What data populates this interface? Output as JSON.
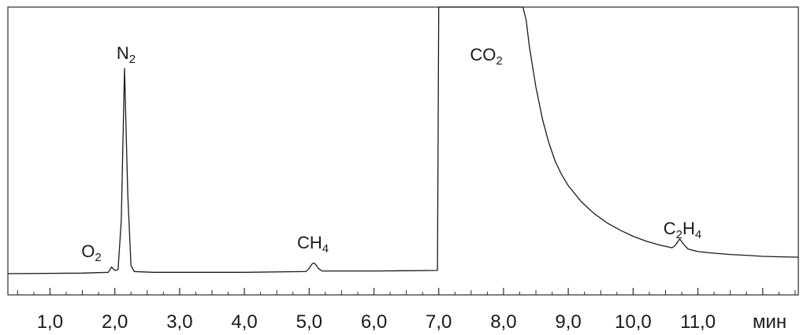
{
  "chart_data": {
    "type": "line",
    "title": "",
    "xlabel": "мин",
    "ylabel": "",
    "xlim": [
      0.35,
      12.55
    ],
    "ylim": [
      0,
      100
    ],
    "grid": false,
    "legend": "none",
    "x_ticks": [
      "1,0",
      "2,0",
      "3,0",
      "4,0",
      "5,0",
      "6,0",
      "7,0",
      "8,0",
      "9,0",
      "10,0",
      "11,0"
    ],
    "x_tick_values": [
      1,
      2,
      3,
      4,
      5,
      6,
      7,
      8,
      9,
      10,
      11
    ],
    "peaks": [
      {
        "id": "o2",
        "main": "O",
        "sub": "2",
        "x": 1.95,
        "height": 2.5
      },
      {
        "id": "n2",
        "main": "N",
        "sub": "2",
        "x": 2.15,
        "height": 77
      },
      {
        "id": "ch4",
        "main": "CH",
        "sub": "4",
        "x": 5.07,
        "height": 4
      },
      {
        "id": "co2",
        "main": "CO",
        "sub": "2",
        "x": 7.0,
        "height": 100
      },
      {
        "id": "c2h4",
        "main": "C",
        "sub": "2",
        "main2": "H",
        "sub2": "4",
        "x": 10.72,
        "height": 4
      }
    ],
    "series": [
      {
        "x": [
          0.35,
          1.5,
          1.9,
          1.95,
          2.0,
          2.05,
          2.1,
          2.15,
          2.2,
          2.25,
          2.3,
          2.6,
          4.0,
          4.95,
          5.0,
          5.04,
          5.07,
          5.1,
          5.14,
          5.2,
          6.0,
          6.98,
          6.99,
          7.0,
          7.05,
          8.3,
          8.35,
          8.4,
          8.5,
          8.6,
          8.7,
          8.8,
          8.9,
          9.0,
          9.2,
          9.4,
          9.6,
          9.8,
          10.0,
          10.2,
          10.4,
          10.6,
          10.65,
          10.72,
          10.78,
          10.85,
          11.0,
          11.2,
          11.5,
          11.8,
          12.0,
          12.3,
          12.55
        ],
        "y": [
          0,
          0.2,
          0.5,
          2.5,
          1.2,
          1.5,
          20,
          77,
          30,
          3,
          0.8,
          0.5,
          0.5,
          0.8,
          2,
          3.5,
          4,
          3.5,
          2,
          1,
          1,
          1.2,
          50,
          100,
          100,
          100,
          95,
          85,
          70,
          58,
          49,
          42,
          37,
          33,
          27,
          22.5,
          19,
          16.3,
          14,
          12.2,
          10.8,
          9.7,
          10.6,
          13,
          11,
          9.2,
          8.3,
          7.8,
          7.2,
          6.8,
          6.5,
          6.3,
          6.2
        ]
      }
    ]
  }
}
